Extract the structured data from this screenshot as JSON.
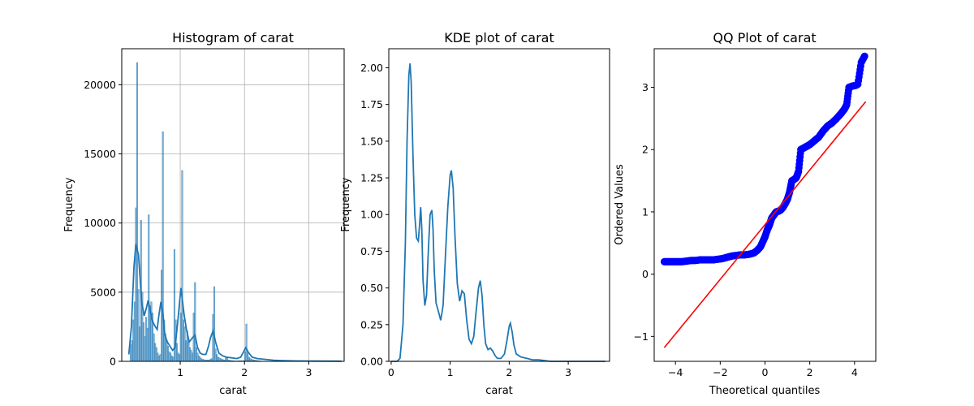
{
  "chart_data": [
    {
      "type": "bar",
      "title": "Histogram of carat",
      "xlabel": "carat",
      "ylabel": "Frequency",
      "xlim": [
        0.09,
        3.55
      ],
      "ylim": [
        0,
        22600
      ],
      "xticks": [
        1,
        2,
        3
      ],
      "yticks": [
        0,
        5000,
        10000,
        15000,
        20000
      ],
      "grid": true,
      "bar_color": "#1f77b4",
      "kde_color": "#1f77b4",
      "bins": [
        {
          "x": 0.22,
          "v": 1200
        },
        {
          "x": 0.24,
          "v": 1500
        },
        {
          "x": 0.26,
          "v": 3000
        },
        {
          "x": 0.28,
          "v": 4300
        },
        {
          "x": 0.3,
          "v": 11100
        },
        {
          "x": 0.32,
          "v": 21600
        },
        {
          "x": 0.34,
          "v": 5200
        },
        {
          "x": 0.36,
          "v": 2500
        },
        {
          "x": 0.38,
          "v": 10200
        },
        {
          "x": 0.4,
          "v": 5000
        },
        {
          "x": 0.42,
          "v": 2800
        },
        {
          "x": 0.44,
          "v": 1800
        },
        {
          "x": 0.46,
          "v": 3200
        },
        {
          "x": 0.48,
          "v": 2400
        },
        {
          "x": 0.5,
          "v": 10600
        },
        {
          "x": 0.52,
          "v": 4000
        },
        {
          "x": 0.54,
          "v": 4300
        },
        {
          "x": 0.56,
          "v": 3500
        },
        {
          "x": 0.58,
          "v": 2000
        },
        {
          "x": 0.6,
          "v": 1300
        },
        {
          "x": 0.62,
          "v": 1000
        },
        {
          "x": 0.64,
          "v": 600
        },
        {
          "x": 0.66,
          "v": 400
        },
        {
          "x": 0.68,
          "v": 500
        },
        {
          "x": 0.7,
          "v": 6600
        },
        {
          "x": 0.72,
          "v": 16600
        },
        {
          "x": 0.74,
          "v": 3000
        },
        {
          "x": 0.76,
          "v": 2000
        },
        {
          "x": 0.78,
          "v": 1500
        },
        {
          "x": 0.8,
          "v": 1100
        },
        {
          "x": 0.82,
          "v": 700
        },
        {
          "x": 0.84,
          "v": 600
        },
        {
          "x": 0.86,
          "v": 400
        },
        {
          "x": 0.88,
          "v": 300
        },
        {
          "x": 0.9,
          "v": 8100
        },
        {
          "x": 0.92,
          "v": 3000
        },
        {
          "x": 0.94,
          "v": 1300
        },
        {
          "x": 0.96,
          "v": 600
        },
        {
          "x": 0.98,
          "v": 500
        },
        {
          "x": 1.0,
          "v": 3500
        },
        {
          "x": 1.02,
          "v": 13800
        },
        {
          "x": 1.04,
          "v": 3000
        },
        {
          "x": 1.06,
          "v": 2500
        },
        {
          "x": 1.08,
          "v": 1500
        },
        {
          "x": 1.1,
          "v": 2200
        },
        {
          "x": 1.12,
          "v": 1400
        },
        {
          "x": 1.14,
          "v": 1000
        },
        {
          "x": 1.16,
          "v": 800
        },
        {
          "x": 1.18,
          "v": 600
        },
        {
          "x": 1.2,
          "v": 3500
        },
        {
          "x": 1.22,
          "v": 5700
        },
        {
          "x": 1.24,
          "v": 1000
        },
        {
          "x": 1.26,
          "v": 600
        },
        {
          "x": 1.28,
          "v": 400
        },
        {
          "x": 1.3,
          "v": 300
        },
        {
          "x": 1.32,
          "v": 200
        },
        {
          "x": 1.34,
          "v": 150
        },
        {
          "x": 1.36,
          "v": 120
        },
        {
          "x": 1.38,
          "v": 100
        },
        {
          "x": 1.4,
          "v": 100
        },
        {
          "x": 1.42,
          "v": 100
        },
        {
          "x": 1.44,
          "v": 100
        },
        {
          "x": 1.46,
          "v": 150
        },
        {
          "x": 1.48,
          "v": 200
        },
        {
          "x": 1.5,
          "v": 3400
        },
        {
          "x": 1.52,
          "v": 5400
        },
        {
          "x": 1.54,
          "v": 900
        },
        {
          "x": 1.56,
          "v": 500
        },
        {
          "x": 1.58,
          "v": 300
        },
        {
          "x": 1.6,
          "v": 250
        },
        {
          "x": 1.62,
          "v": 200
        },
        {
          "x": 1.64,
          "v": 150
        },
        {
          "x": 1.66,
          "v": 120
        },
        {
          "x": 1.68,
          "v": 100
        },
        {
          "x": 1.7,
          "v": 300
        },
        {
          "x": 1.72,
          "v": 250
        },
        {
          "x": 1.74,
          "v": 100
        },
        {
          "x": 1.76,
          "v": 80
        },
        {
          "x": 1.78,
          "v": 60
        },
        {
          "x": 1.8,
          "v": 50
        },
        {
          "x": 1.82,
          "v": 40
        },
        {
          "x": 1.84,
          "v": 30
        },
        {
          "x": 1.86,
          "v": 30
        },
        {
          "x": 1.88,
          "v": 30
        },
        {
          "x": 1.9,
          "v": 40
        },
        {
          "x": 1.92,
          "v": 40
        },
        {
          "x": 1.94,
          "v": 40
        },
        {
          "x": 1.96,
          "v": 40
        },
        {
          "x": 1.98,
          "v": 60
        },
        {
          "x": 2.0,
          "v": 700
        },
        {
          "x": 2.02,
          "v": 2700
        },
        {
          "x": 2.04,
          "v": 600
        },
        {
          "x": 2.06,
          "v": 300
        },
        {
          "x": 2.08,
          "v": 200
        },
        {
          "x": 2.1,
          "v": 150
        },
        {
          "x": 2.12,
          "v": 120
        },
        {
          "x": 2.14,
          "v": 100
        },
        {
          "x": 2.16,
          "v": 80
        },
        {
          "x": 2.18,
          "v": 60
        },
        {
          "x": 2.2,
          "v": 50
        },
        {
          "x": 2.22,
          "v": 40
        },
        {
          "x": 2.24,
          "v": 30
        }
      ],
      "kde": {
        "x": [
          0.2,
          0.24,
          0.28,
          0.31,
          0.35,
          0.4,
          0.44,
          0.47,
          0.5,
          0.53,
          0.56,
          0.6,
          0.64,
          0.67,
          0.7,
          0.73,
          0.76,
          0.8,
          0.84,
          0.88,
          0.92,
          0.96,
          1.01,
          1.06,
          1.1,
          1.14,
          1.19,
          1.23,
          1.27,
          1.31,
          1.35,
          1.4,
          1.44,
          1.47,
          1.51,
          1.55,
          1.6,
          1.66,
          1.72,
          1.8,
          1.88,
          1.94,
          1.98,
          2.02,
          2.06,
          2.12,
          2.2,
          2.3,
          2.45,
          2.6,
          2.8,
          3.1,
          3.51
        ],
        "y": [
          500,
          2500,
          6800,
          8500,
          7700,
          4300,
          3300,
          3800,
          4400,
          3800,
          3000,
          2600,
          2300,
          3400,
          4300,
          3500,
          1900,
          1400,
          1100,
          800,
          1000,
          2800,
          5300,
          3400,
          2200,
          1400,
          1700,
          1900,
          1000,
          600,
          500,
          500,
          1100,
          1700,
          2200,
          1400,
          600,
          400,
          300,
          250,
          200,
          300,
          650,
          1000,
          650,
          300,
          200,
          150,
          80,
          50,
          30,
          20,
          10
        ]
      }
    },
    {
      "type": "line",
      "title": "KDE plot of carat",
      "xlabel": "carat",
      "ylabel": "Frequency",
      "xlim": [
        -0.04,
        3.7
      ],
      "ylim": [
        0,
        2.13
      ],
      "xticks": [
        0,
        1,
        2,
        3
      ],
      "yticks": [
        0.0,
        0.25,
        0.5,
        0.75,
        1.0,
        1.25,
        1.5,
        1.75,
        2.0
      ],
      "grid": false,
      "line_color": "#1f77b4",
      "x": [
        0.0,
        0.1,
        0.15,
        0.2,
        0.24,
        0.27,
        0.3,
        0.32,
        0.34,
        0.37,
        0.4,
        0.43,
        0.46,
        0.48,
        0.5,
        0.52,
        0.54,
        0.57,
        0.6,
        0.63,
        0.66,
        0.69,
        0.71,
        0.73,
        0.76,
        0.8,
        0.84,
        0.88,
        0.92,
        0.96,
        1.0,
        1.02,
        1.05,
        1.08,
        1.12,
        1.16,
        1.2,
        1.24,
        1.28,
        1.32,
        1.36,
        1.4,
        1.44,
        1.48,
        1.51,
        1.54,
        1.57,
        1.6,
        1.64,
        1.68,
        1.72,
        1.76,
        1.8,
        1.86,
        1.92,
        1.96,
        2.0,
        2.02,
        2.05,
        2.08,
        2.12,
        2.2,
        2.3,
        2.4,
        2.5,
        2.7,
        3.0,
        3.2,
        3.5,
        3.63
      ],
      "y": [
        0.0,
        0.0,
        0.02,
        0.25,
        0.8,
        1.5,
        1.95,
        2.03,
        1.9,
        1.4,
        1.0,
        0.84,
        0.82,
        0.92,
        1.05,
        0.9,
        0.55,
        0.38,
        0.45,
        0.75,
        1.0,
        1.03,
        0.9,
        0.62,
        0.4,
        0.34,
        0.28,
        0.38,
        0.72,
        1.05,
        1.27,
        1.3,
        1.18,
        0.86,
        0.53,
        0.41,
        0.48,
        0.46,
        0.28,
        0.15,
        0.12,
        0.17,
        0.34,
        0.5,
        0.55,
        0.45,
        0.25,
        0.12,
        0.08,
        0.09,
        0.07,
        0.04,
        0.02,
        0.02,
        0.05,
        0.14,
        0.24,
        0.26,
        0.2,
        0.11,
        0.05,
        0.03,
        0.02,
        0.01,
        0.01,
        0.0,
        0.0,
        0.0,
        0.0,
        0.0
      ]
    },
    {
      "type": "scatter",
      "title": "QQ Plot of carat",
      "xlabel": "Theoretical quantiles",
      "ylabel": "Ordered Values",
      "xlim": [
        -4.95,
        4.95
      ],
      "ylim": [
        -1.4,
        3.62
      ],
      "xticks": [
        -4,
        -2,
        0,
        2,
        4
      ],
      "yticks": [
        -1,
        0,
        1,
        2,
        3
      ],
      "grid": false,
      "point_color": "#0000ff",
      "line_color": "#ff0000",
      "points": [
        [
          -4.5,
          0.2
        ],
        [
          -4.3,
          0.2
        ],
        [
          -4.1,
          0.2
        ],
        [
          -3.9,
          0.2
        ],
        [
          -3.7,
          0.2
        ],
        [
          -3.5,
          0.21
        ],
        [
          -3.3,
          0.22
        ],
        [
          -3.1,
          0.22
        ],
        [
          -2.9,
          0.23
        ],
        [
          -2.7,
          0.23
        ],
        [
          -2.5,
          0.23
        ],
        [
          -2.3,
          0.23
        ],
        [
          -2.1,
          0.24
        ],
        [
          -1.9,
          0.25
        ],
        [
          -1.7,
          0.27
        ],
        [
          -1.5,
          0.29
        ],
        [
          -1.3,
          0.3
        ],
        [
          -1.1,
          0.31
        ],
        [
          -0.9,
          0.31
        ],
        [
          -0.7,
          0.32
        ],
        [
          -0.5,
          0.34
        ],
        [
          -0.35,
          0.38
        ],
        [
          -0.2,
          0.44
        ],
        [
          -0.1,
          0.52
        ],
        [
          0.0,
          0.6
        ],
        [
          0.1,
          0.71
        ],
        [
          0.2,
          0.79
        ],
        [
          0.3,
          0.9
        ],
        [
          0.4,
          0.95
        ],
        [
          0.5,
          1.0
        ],
        [
          0.6,
          1.01
        ],
        [
          0.7,
          1.03
        ],
        [
          0.8,
          1.07
        ],
        [
          0.9,
          1.13
        ],
        [
          1.0,
          1.2
        ],
        [
          1.1,
          1.32
        ],
        [
          1.2,
          1.5
        ],
        [
          1.3,
          1.52
        ],
        [
          1.4,
          1.55
        ],
        [
          1.5,
          1.65
        ],
        [
          1.6,
          2.0
        ],
        [
          1.7,
          2.02
        ],
        [
          1.8,
          2.04
        ],
        [
          1.9,
          2.06
        ],
        [
          2.0,
          2.08
        ],
        [
          2.2,
          2.14
        ],
        [
          2.4,
          2.2
        ],
        [
          2.6,
          2.3
        ],
        [
          2.8,
          2.38
        ],
        [
          3.0,
          2.43
        ],
        [
          3.2,
          2.5
        ],
        [
          3.4,
          2.58
        ],
        [
          3.55,
          2.65
        ],
        [
          3.65,
          2.72
        ],
        [
          3.75,
          3.0
        ],
        [
          3.9,
          3.02
        ],
        [
          4.05,
          3.03
        ],
        [
          4.15,
          3.05
        ],
        [
          4.3,
          3.4
        ],
        [
          4.45,
          3.5
        ]
      ],
      "fit_line": [
        [
          -4.5,
          -1.18
        ],
        [
          4.5,
          2.77
        ]
      ]
    }
  ]
}
